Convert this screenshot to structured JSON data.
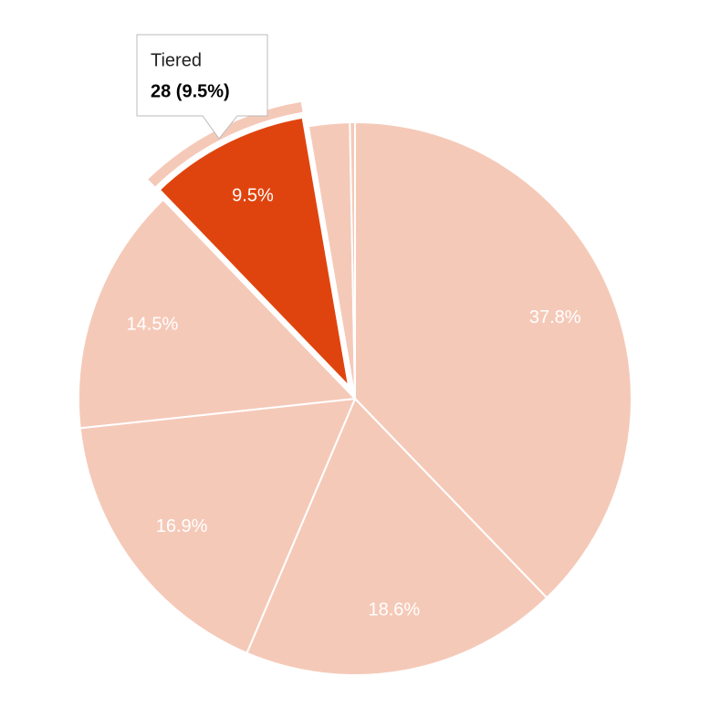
{
  "chart_data": {
    "type": "pie",
    "categories": [
      null,
      null,
      null,
      null,
      "Tiered",
      null,
      null
    ],
    "values": [
      37.8,
      18.6,
      16.9,
      14.5,
      9.5,
      2.4,
      0.3
    ],
    "value_labels": [
      "37.8%",
      "18.6%",
      "16.9%",
      "14.5%",
      "9.5%",
      null,
      null
    ],
    "colors": [
      "#f5c9b8",
      "#f5c9b8",
      "#f5c9b8",
      "#f5c9b8",
      "#e0440e",
      "#f5c9b8",
      "#f5c9b8"
    ],
    "selected_index": 4,
    "tooltip": {
      "value": 28,
      "label": "28 (9.5%)"
    }
  }
}
